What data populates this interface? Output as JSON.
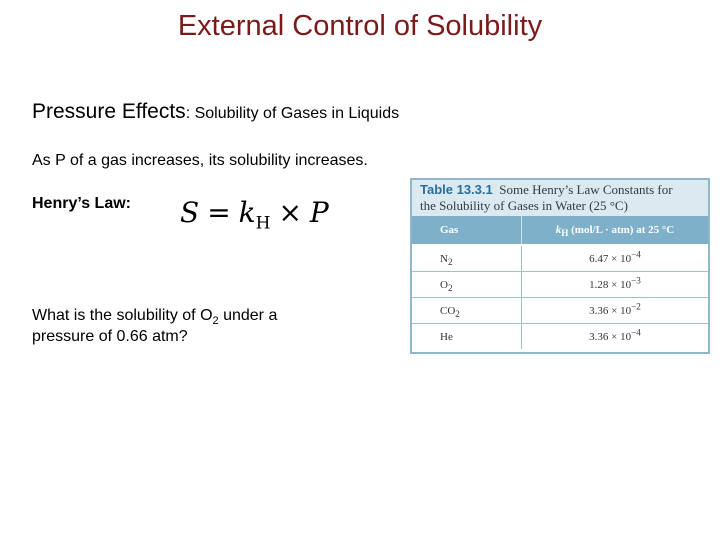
{
  "slide": {
    "title": "External Control of Solubility",
    "heading_main": "Pressure Effects",
    "heading_sub": ": Solubility of Gases in Liquids",
    "statement": "As P of a gas increases, its solubility increases.",
    "henry_label": "Henry’s Law:",
    "formula": {
      "lhs": "S",
      "eq": "=",
      "k": "k",
      "k_sub": "H",
      "times": "×",
      "rhs": "P"
    },
    "question": {
      "part1": "What is the solubility of O",
      "sub": "2",
      "part2": " under a",
      "line2": "pressure of 0.66 atm?"
    }
  },
  "table": {
    "number": "Table 13.3.1",
    "caption_line1": "Some Henry’s Law Constants for",
    "caption_line2": "the Solubility of Gases in Water (25 °C)",
    "col_gas": "Gas",
    "col_k": "k",
    "col_k_sub": "H",
    "col_k_units": " (mol/L · atm) at 25 °C",
    "rows": [
      {
        "gas": "N",
        "gas_sub": "2",
        "mant": "6.47 × 10",
        "exp": "−4"
      },
      {
        "gas": "O",
        "gas_sub": "2",
        "mant": "1.28 × 10",
        "exp": "−3"
      },
      {
        "gas": "CO",
        "gas_sub": "2",
        "mant": "3.36 × 10",
        "exp": "−2"
      },
      {
        "gas": "He",
        "gas_sub": "",
        "mant": "3.36 × 10",
        "exp": "−4"
      }
    ]
  }
}
